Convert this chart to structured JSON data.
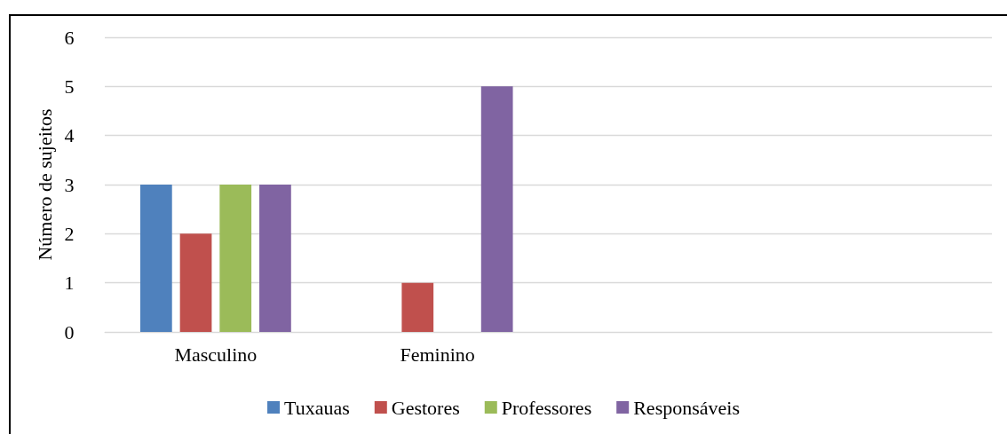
{
  "chart_data": {
    "type": "bar",
    "ylabel": "Número de sujeitos",
    "categories": [
      "Masculino",
      "Feminino",
      null,
      null
    ],
    "series": [
      {
        "name": "Tuxauas",
        "color": "#4f81bd",
        "values": [
          3,
          0,
          null,
          null
        ]
      },
      {
        "name": "Gestores",
        "color": "#c0504d",
        "values": [
          2,
          1,
          null,
          null
        ]
      },
      {
        "name": "Professores",
        "color": "#9bbb59",
        "values": [
          3,
          0,
          null,
          null
        ]
      },
      {
        "name": "Responsáveis",
        "color": "#8064a2",
        "values": [
          3,
          5,
          null,
          null
        ]
      }
    ],
    "ylim": [
      0,
      6
    ],
    "yticks": [
      0,
      1,
      2,
      3,
      4,
      5,
      6
    ],
    "grid": "y",
    "legend": "bottom"
  }
}
